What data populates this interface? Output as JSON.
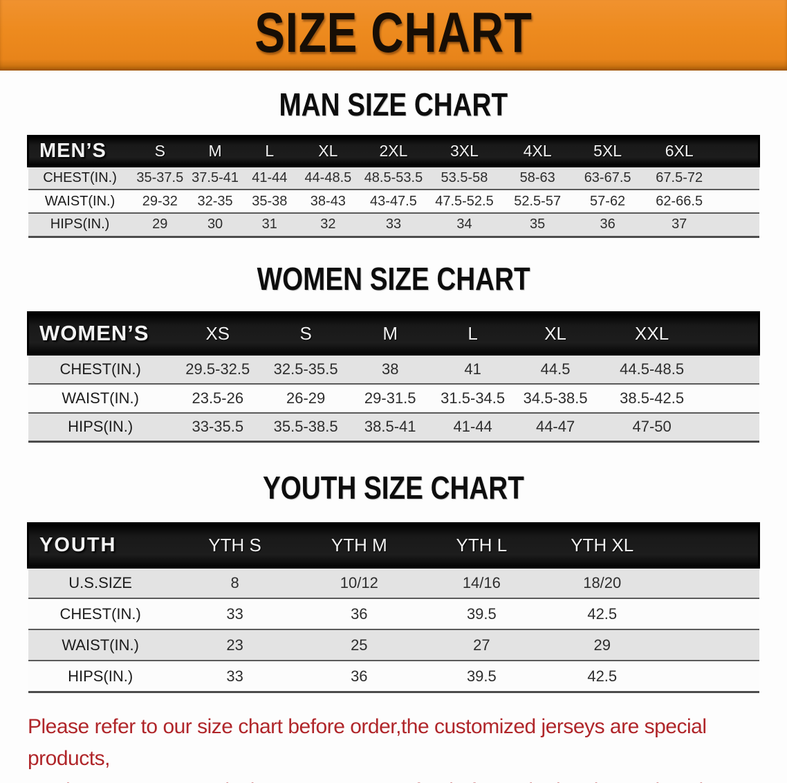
{
  "banner": {
    "title": "SIZE CHART",
    "bg_color": "#ED8A1E",
    "text_color": "#170E05"
  },
  "sections": [
    {
      "id": "men",
      "title": "MAN SIZE CHART",
      "header_label": "MEN’S",
      "columns": [
        "S",
        "M",
        "L",
        "XL",
        "2XL",
        "3XL",
        "4XL",
        "5XL",
        "6XL"
      ],
      "rows": [
        {
          "label": "CHEST(IN.)",
          "values": [
            "35-37.5",
            "37.5-41",
            "41-44",
            "44-48.5",
            "48.5-53.5",
            "53.5-58",
            "58-63",
            "63-67.5",
            "67.5-72"
          ]
        },
        {
          "label": "WAIST(IN.)",
          "values": [
            "29-32",
            "32-35",
            "35-38",
            "38-43",
            "43-47.5",
            "47.5-52.5",
            "52.5-57",
            "57-62",
            "62-66.5"
          ]
        },
        {
          "label": "HIPS(IN.)",
          "values": [
            "29",
            "30",
            "31",
            "32",
            "33",
            "34",
            "35",
            "36",
            "37"
          ]
        }
      ]
    },
    {
      "id": "women",
      "title": "WOMEN SIZE CHART",
      "header_label": "WOMEN’S",
      "columns": [
        "XS",
        "S",
        "M",
        "L",
        "XL",
        "XXL"
      ],
      "rows": [
        {
          "label": "CHEST(IN.)",
          "values": [
            "29.5-32.5",
            "32.5-35.5",
            "38",
            "41",
            "44.5",
            "44.5-48.5"
          ]
        },
        {
          "label": "WAIST(IN.)",
          "values": [
            "23.5-26",
            "26-29",
            "29-31.5",
            "31.5-34.5",
            "34.5-38.5",
            "38.5-42.5"
          ]
        },
        {
          "label": "HIPS(IN.)",
          "values": [
            "33-35.5",
            "35.5-38.5",
            "38.5-41",
            "41-44",
            "44-47",
            "47-50"
          ]
        }
      ]
    },
    {
      "id": "youth",
      "title": "YOUTH SIZE CHART",
      "header_label": "YOUTH",
      "columns": [
        "YTH S",
        "YTH M",
        "YTH L",
        "YTH XL"
      ],
      "rows": [
        {
          "label": "U.S.SIZE",
          "values": [
            "8",
            "10/12",
            "14/16",
            "18/20"
          ]
        },
        {
          "label": "CHEST(IN.)",
          "values": [
            "33",
            "36",
            "39.5",
            "42.5"
          ]
        },
        {
          "label": "WAIST(IN.)",
          "values": [
            "23",
            "25",
            "27",
            "29"
          ]
        },
        {
          "label": "HIPS(IN.)",
          "values": [
            "33",
            "36",
            "39.5",
            "42.5"
          ]
        }
      ]
    }
  ],
  "footer": {
    "line1": "Please refer to our size chart before order,the customized jerseys are special products,",
    "line2": "we don't accept cancel, change, teturn or refund after order has been placed!",
    "text_color": "#B0262A"
  },
  "chart_data": [
    {
      "type": "table",
      "title": "MAN SIZE CHART",
      "columns": [
        "MEN’S",
        "S",
        "M",
        "L",
        "XL",
        "2XL",
        "3XL",
        "4XL",
        "5XL",
        "6XL"
      ],
      "rows": [
        [
          "CHEST(IN.)",
          "35-37.5",
          "37.5-41",
          "41-44",
          "44-48.5",
          "48.5-53.5",
          "53.5-58",
          "58-63",
          "63-67.5",
          "67.5-72"
        ],
        [
          "WAIST(IN.)",
          "29-32",
          "32-35",
          "35-38",
          "38-43",
          "43-47.5",
          "47.5-52.5",
          "52.5-57",
          "57-62",
          "62-66.5"
        ],
        [
          "HIPS(IN.)",
          "29",
          "30",
          "31",
          "32",
          "33",
          "34",
          "35",
          "36",
          "37"
        ]
      ]
    },
    {
      "type": "table",
      "title": "WOMEN SIZE CHART",
      "columns": [
        "WOMEN’S",
        "XS",
        "S",
        "M",
        "L",
        "XL",
        "XXL"
      ],
      "rows": [
        [
          "CHEST(IN.)",
          "29.5-32.5",
          "32.5-35.5",
          "38",
          "41",
          "44.5",
          "44.5-48.5"
        ],
        [
          "WAIST(IN.)",
          "23.5-26",
          "26-29",
          "29-31.5",
          "31.5-34.5",
          "34.5-38.5",
          "38.5-42.5"
        ],
        [
          "HIPS(IN.)",
          "33-35.5",
          "35.5-38.5",
          "38.5-41",
          "41-44",
          "44-47",
          "47-50"
        ]
      ]
    },
    {
      "type": "table",
      "title": "YOUTH SIZE CHART",
      "columns": [
        "YOUTH",
        "YTH S",
        "YTH M",
        "YTH L",
        "YTH XL"
      ],
      "rows": [
        [
          "U.S.SIZE",
          "8",
          "10/12",
          "14/16",
          "18/20"
        ],
        [
          "CHEST(IN.)",
          "33",
          "36",
          "39.5",
          "42.5"
        ],
        [
          "WAIST(IN.)",
          "23",
          "25",
          "27",
          "29"
        ],
        [
          "HIPS(IN.)",
          "33",
          "36",
          "39.5",
          "42.5"
        ]
      ]
    }
  ]
}
